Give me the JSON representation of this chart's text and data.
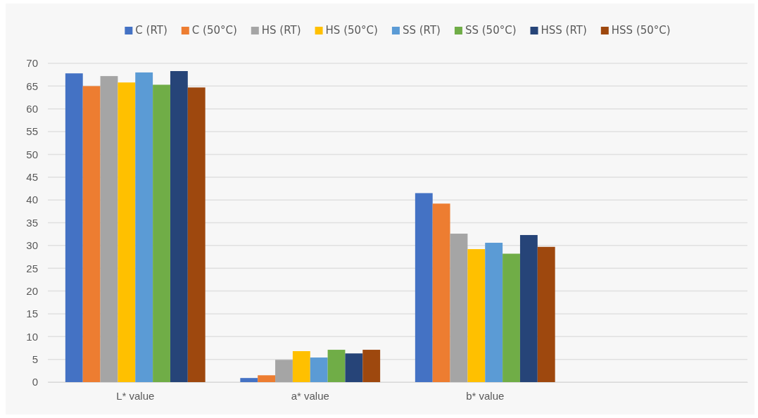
{
  "chart_data": {
    "type": "bar",
    "categories": [
      "L* value",
      "a* value",
      "b* value",
      null
    ],
    "series": [
      {
        "name": "C (RT)",
        "color": "#4472c4",
        "values": [
          67.8,
          0.9,
          41.5,
          null
        ]
      },
      {
        "name": "C (50°C)",
        "color": "#ed7d31",
        "values": [
          65.0,
          1.5,
          39.2,
          null
        ]
      },
      {
        "name": "HS (RT)",
        "color": "#a5a5a5",
        "values": [
          67.2,
          4.9,
          32.6,
          null
        ]
      },
      {
        "name": "HS (50°C)",
        "color": "#ffc000",
        "values": [
          65.8,
          6.8,
          29.2,
          null
        ]
      },
      {
        "name": "SS (RT)",
        "color": "#5b9bd5",
        "values": [
          68.0,
          5.4,
          30.6,
          null
        ]
      },
      {
        "name": "SS (50°C)",
        "color": "#70ad47",
        "values": [
          65.3,
          7.1,
          28.2,
          null
        ]
      },
      {
        "name": "HSS (RT)",
        "color": "#264478",
        "values": [
          68.3,
          6.3,
          32.3,
          null
        ]
      },
      {
        "name": "HSS (50°C)",
        "color": "#9e480e",
        "values": [
          64.7,
          7.1,
          29.7,
          null
        ]
      }
    ],
    "ylim": [
      0,
      70
    ],
    "yticks": [
      0,
      5,
      10,
      15,
      20,
      25,
      30,
      35,
      40,
      45,
      50,
      55,
      60,
      65,
      70
    ],
    "grid": "y",
    "legend": "top"
  }
}
